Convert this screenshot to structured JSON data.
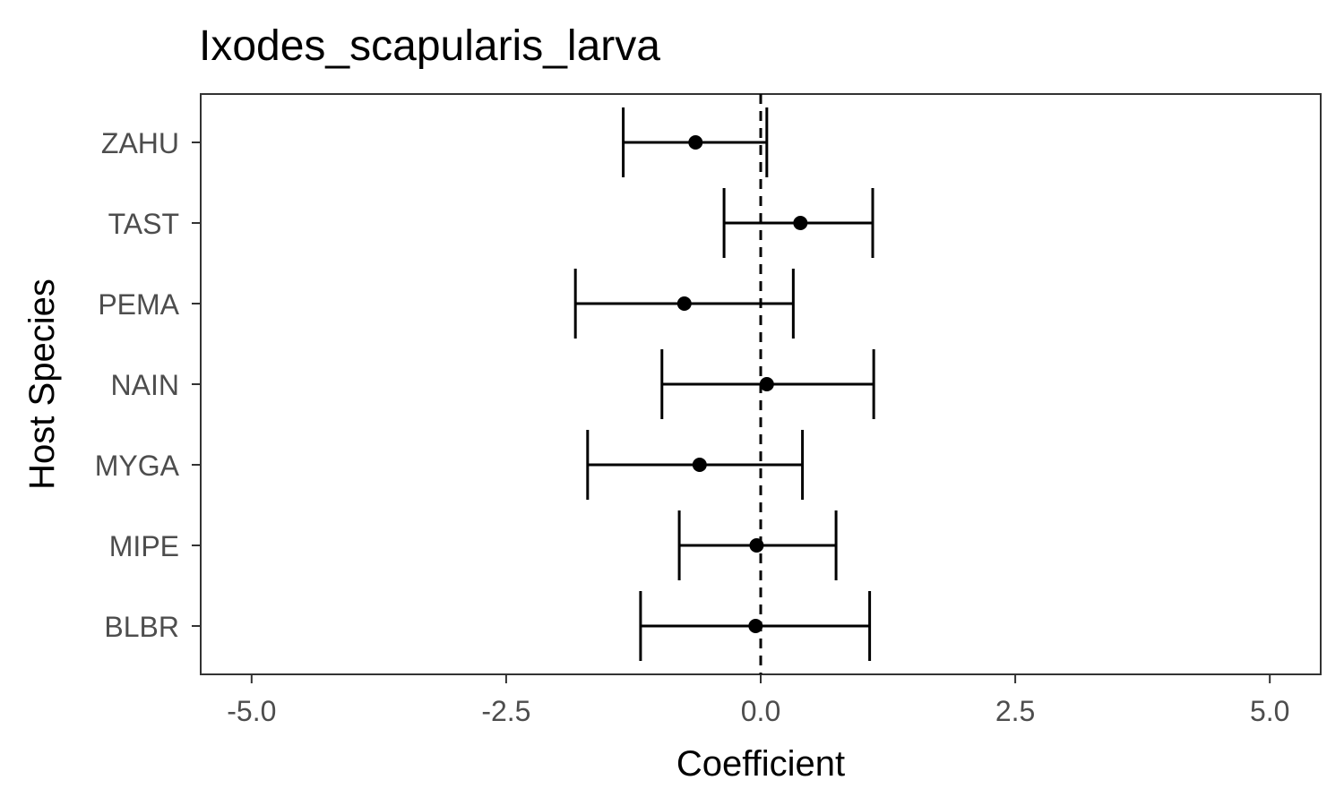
{
  "chart_data": {
    "type": "scatter",
    "title": "Ixodes_scapularis_larva",
    "xlabel": "Coefficient",
    "ylabel": "Host Species",
    "xlim": [
      -5.5,
      5.5
    ],
    "x_ticks": [
      "-5.0",
      "-2.5",
      "0.0",
      "2.5",
      "5.0"
    ],
    "x_tick_values": [
      -5,
      -2.5,
      0,
      2.5,
      5
    ],
    "reference_line": {
      "x": 0,
      "style": "dashed"
    },
    "grid": false,
    "legend": "none",
    "colors": {
      "points": "#000000",
      "panel_border": "#333333",
      "tick_label": "#4d4d4d"
    },
    "categories": [
      "BLBR",
      "MIPE",
      "MYGA",
      "NAIN",
      "PEMA",
      "TAST",
      "ZAHU"
    ],
    "points": [
      {
        "species": "BLBR",
        "estimate": -0.05,
        "lower": -1.18,
        "upper": 1.07
      },
      {
        "species": "MIPE",
        "estimate": -0.04,
        "lower": -0.8,
        "upper": 0.74
      },
      {
        "species": "MYGA",
        "estimate": -0.6,
        "lower": -1.7,
        "upper": 0.41
      },
      {
        "species": "NAIN",
        "estimate": 0.06,
        "lower": -0.97,
        "upper": 1.11
      },
      {
        "species": "PEMA",
        "estimate": -0.75,
        "lower": -1.82,
        "upper": 0.32
      },
      {
        "species": "TAST",
        "estimate": 0.39,
        "lower": -0.36,
        "upper": 1.1
      },
      {
        "species": "ZAHU",
        "estimate": -0.64,
        "lower": -1.35,
        "upper": 0.06
      }
    ]
  }
}
